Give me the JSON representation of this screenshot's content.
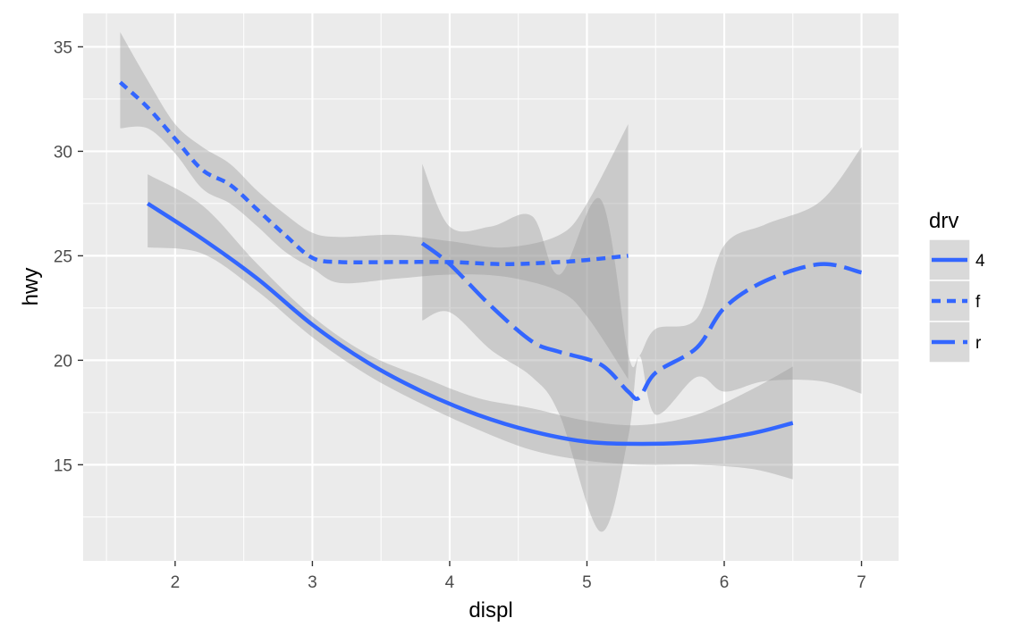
{
  "chart_data": {
    "type": "line",
    "xlabel": "displ",
    "ylabel": "hwy",
    "xlim": [
      1.33,
      7.27
    ],
    "ylim": [
      10.4,
      36.6
    ],
    "x_ticks": [
      2,
      3,
      4,
      5,
      6,
      7
    ],
    "y_ticks": [
      15,
      20,
      25,
      30,
      35
    ],
    "grid": true,
    "legend": {
      "title": "drv",
      "position": "right",
      "entries": [
        "4",
        "f",
        "r"
      ]
    },
    "line_color": "#3366ff",
    "ribbon_color": "#999999",
    "panel_background": "#ebebeb",
    "series": [
      {
        "name": "4",
        "linetype": "solid",
        "x": [
          1.8,
          2.2,
          2.6,
          3.0,
          3.4,
          3.8,
          4.2,
          4.6,
          5.0,
          5.4,
          5.8,
          6.2,
          6.5
        ],
        "y": [
          27.5,
          25.8,
          23.9,
          21.7,
          19.9,
          18.5,
          17.4,
          16.6,
          16.1,
          16.0,
          16.1,
          16.5,
          17.0
        ],
        "lower": [
          25.4,
          25.1,
          23.3,
          21.1,
          19.3,
          17.9,
          16.7,
          15.7,
          15.2,
          15.0,
          15.0,
          14.8,
          14.3
        ],
        "upper": [
          28.9,
          27.4,
          24.6,
          22.1,
          20.3,
          19.2,
          18.2,
          17.7,
          17.1,
          16.9,
          17.4,
          18.6,
          19.7
        ]
      },
      {
        "name": "f",
        "linetype": "dotted",
        "x": [
          1.6,
          1.8,
          2.0,
          2.2,
          2.4,
          2.6,
          2.8,
          3.0,
          3.2,
          3.6,
          4.0,
          4.4,
          4.8,
          5.0,
          5.3
        ],
        "y": [
          33.3,
          32.1,
          30.6,
          29.1,
          28.4,
          27.2,
          26.0,
          24.9,
          24.7,
          24.7,
          24.7,
          24.6,
          24.7,
          24.8,
          25.0
        ],
        "lower": [
          31.1,
          31.1,
          29.9,
          28.2,
          27.5,
          26.4,
          25.2,
          24.4,
          23.7,
          23.9,
          24.1,
          24.0,
          23.3,
          22.1,
          19.1
        ],
        "upper": [
          35.7,
          33.4,
          31.3,
          30.2,
          29.4,
          28.1,
          27.0,
          26.1,
          25.9,
          26.0,
          25.7,
          25.4,
          26.0,
          27.5,
          31.3
        ]
      },
      {
        "name": "r",
        "linetype": "longdash",
        "x": [
          3.8,
          4.0,
          4.3,
          4.6,
          4.8,
          5.1,
          5.3,
          5.38,
          5.5,
          5.8,
          6.0,
          6.3,
          6.7,
          7.0
        ],
        "y": [
          25.6,
          24.6,
          22.6,
          20.9,
          20.4,
          19.8,
          18.5,
          18.2,
          19.4,
          20.6,
          22.5,
          23.8,
          24.6,
          24.2
        ],
        "lower": [
          21.9,
          22.3,
          20.5,
          19.2,
          17.4,
          11.8,
          16.3,
          20.2,
          17.4,
          19.2,
          18.5,
          19.0,
          19.0,
          18.4
        ],
        "upper": [
          29.4,
          26.4,
          26.4,
          26.9,
          24.1,
          27.7,
          20.3,
          20.2,
          21.5,
          22.0,
          25.5,
          26.5,
          27.6,
          30.2
        ]
      }
    ]
  }
}
